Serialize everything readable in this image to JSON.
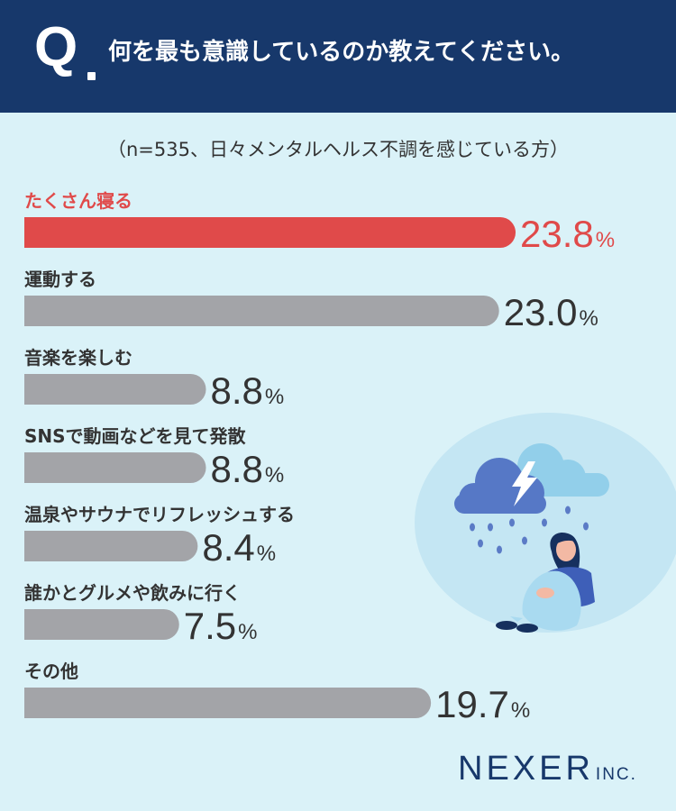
{
  "header": {
    "q_letter": "Q",
    "question": "何を最も意識しているのか教えてください。"
  },
  "subtitle": "（n=535、日々メンタルヘルス不調を感じている方）",
  "colors": {
    "header_bg": "#17386b",
    "background": "#daf2f8",
    "highlight": "#e04a4a",
    "bar": "#a3a4a8",
    "text": "#333333"
  },
  "chart_data": {
    "type": "bar",
    "orientation": "horizontal",
    "unit": "%",
    "categories": [
      "たくさん寝る",
      "運動する",
      "音楽を楽しむ",
      "SNSで動画などを見て発散",
      "温泉やサウナでリフレッシュする",
      "誰かとグルメや飲みに行く",
      "その他"
    ],
    "values": [
      23.8,
      23.0,
      8.8,
      8.8,
      8.4,
      7.5,
      19.7
    ],
    "labels": [
      "23.8",
      "23.0",
      "8.8",
      "8.8",
      "8.4",
      "7.5",
      "19.7"
    ],
    "highlight_index": 0,
    "grid": false,
    "legend": "none"
  },
  "logo": {
    "main": "NEXER",
    "suffix": "INC."
  },
  "illustration": {
    "icon": "woman-under-rain-cloud-illustration"
  }
}
